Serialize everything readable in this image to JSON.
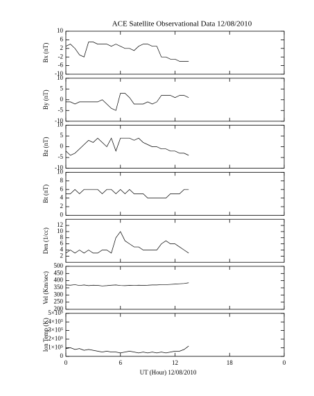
{
  "chart_data": [
    {
      "type": "line",
      "title": "ACE Satellite Observational Data   12/08/2010",
      "ylabel": "Bx (nT)",
      "x": [
        0,
        0.5,
        1,
        1.5,
        2,
        2.5,
        3,
        3.5,
        4,
        4.5,
        5,
        5.5,
        6,
        6.5,
        7,
        7.5,
        8,
        8.5,
        9,
        9.5,
        10,
        10.5,
        11,
        11.5,
        12,
        12.5,
        13,
        13.5
      ],
      "values": [
        3,
        4,
        2,
        -1,
        -2,
        5,
        5,
        4,
        4,
        4,
        3,
        4,
        3,
        2,
        2,
        1,
        3,
        4,
        4,
        3,
        3,
        -2,
        -2,
        -3,
        -3,
        -4,
        -4,
        -4
      ],
      "ylim": [
        -10,
        10
      ],
      "yticks": [
        -10,
        -6,
        -2,
        2,
        6,
        10
      ],
      "color": "#000000"
    },
    {
      "type": "line",
      "ylabel": "By (nT)",
      "x": [
        0,
        0.5,
        1,
        1.5,
        2,
        2.5,
        3,
        3.5,
        4,
        4.5,
        5,
        5.5,
        6,
        6.5,
        7,
        7.5,
        8,
        8.5,
        9,
        9.5,
        10,
        10.5,
        11,
        11.5,
        12,
        12.5,
        13,
        13.5
      ],
      "values": [
        -1,
        -1,
        -2,
        -1,
        -1,
        -1,
        -1,
        -1,
        0,
        -2,
        -4,
        -5,
        3,
        3,
        1,
        -2,
        -2,
        -2,
        -1,
        -2,
        -1,
        2,
        2,
        2,
        1,
        2,
        2,
        1
      ],
      "ylim": [
        -10,
        10
      ],
      "yticks": [
        -10,
        -5,
        0,
        5,
        10
      ],
      "color": "#000000"
    },
    {
      "type": "line",
      "ylabel": "Bz (nT)",
      "x": [
        0,
        0.5,
        1,
        1.5,
        2,
        2.5,
        3,
        3.5,
        4,
        4.5,
        5,
        5.5,
        6,
        6.5,
        7,
        7.5,
        8,
        8.5,
        9,
        9.5,
        10,
        10.5,
        11,
        11.5,
        12,
        12.5,
        13,
        13.5
      ],
      "values": [
        -2,
        -4,
        -3,
        -1,
        1,
        3,
        2,
        4,
        2,
        0,
        4,
        -2,
        4,
        4,
        4,
        3,
        4,
        2,
        1,
        0,
        0,
        -1,
        -1,
        -2,
        -2,
        -3,
        -3,
        -4
      ],
      "ylim": [
        -10,
        10
      ],
      "yticks": [
        -10,
        -5,
        0,
        5,
        10
      ],
      "color": "#000000"
    },
    {
      "type": "line",
      "ylabel": "Bt (nT)",
      "x": [
        0,
        0.5,
        1,
        1.5,
        2,
        2.5,
        3,
        3.5,
        4,
        4.5,
        5,
        5.5,
        6,
        6.5,
        7,
        7.5,
        8,
        8.5,
        9,
        9.5,
        10,
        10.5,
        11,
        11.5,
        12,
        12.5,
        13,
        13.5
      ],
      "values": [
        5,
        5,
        6,
        5,
        6,
        6,
        6,
        6,
        5,
        6,
        6,
        5,
        6,
        5,
        6,
        5,
        5,
        5,
        4,
        4,
        4,
        4,
        4,
        5,
        5,
        5,
        6,
        6
      ],
      "ylim": [
        0,
        10
      ],
      "yticks": [
        0,
        2,
        4,
        6,
        8,
        10
      ],
      "color": "#000000"
    },
    {
      "type": "line",
      "ylabel": "Den (1/cc)",
      "x": [
        0,
        0.5,
        1,
        1.5,
        2,
        2.5,
        3,
        3.5,
        4,
        4.5,
        5,
        5.5,
        6,
        6.5,
        7,
        7.5,
        8,
        8.5,
        9,
        9.5,
        10,
        10.5,
        11,
        11.5,
        12,
        12.5,
        13,
        13.5
      ],
      "values": [
        3,
        4,
        3,
        4,
        3,
        4,
        3,
        3,
        4,
        4,
        3,
        8,
        10,
        7,
        6,
        5,
        5,
        4,
        4,
        4,
        4,
        6,
        7,
        6,
        6,
        5,
        4,
        3
      ],
      "ylim": [
        0,
        14
      ],
      "yticks": [
        2,
        4,
        6,
        8,
        10,
        12
      ],
      "color": "#000000"
    },
    {
      "type": "line",
      "ylabel": "Vel (Km/sec)",
      "x": [
        0,
        0.5,
        1,
        1.5,
        2,
        2.5,
        3,
        3.5,
        4,
        4.5,
        5,
        5.5,
        6,
        6.5,
        7,
        7.5,
        8,
        8.5,
        9,
        9.5,
        10,
        10.5,
        11,
        11.5,
        12,
        12.5,
        13,
        13.5
      ],
      "values": [
        370,
        368,
        372,
        366,
        370,
        365,
        368,
        367,
        363,
        365,
        368,
        370,
        366,
        365,
        367,
        366,
        368,
        367,
        368,
        370,
        370,
        372,
        372,
        374,
        376,
        378,
        380,
        385
      ],
      "ylim": [
        200,
        500
      ],
      "yticks": [
        200,
        250,
        300,
        350,
        400,
        450,
        500
      ],
      "color": "#000000"
    },
    {
      "type": "line",
      "ylabel": "Ion Temp (K)",
      "xlabel": "UT (Hour)   12/08/2010",
      "x": [
        0,
        0.5,
        1,
        1.5,
        2,
        2.5,
        3,
        3.5,
        4,
        4.5,
        5,
        5.5,
        6,
        6.5,
        7,
        7.5,
        8,
        8.5,
        9,
        9.5,
        10,
        10.5,
        11,
        11.5,
        12,
        12.5,
        13,
        13.5
      ],
      "values": [
        90000,
        100000,
        80000,
        90000,
        70000,
        80000,
        70000,
        60000,
        50000,
        60000,
        50000,
        50000,
        40000,
        50000,
        60000,
        50000,
        40000,
        50000,
        40000,
        50000,
        40000,
        50000,
        40000,
        50000,
        60000,
        60000,
        80000,
        120000
      ],
      "ylim": [
        0,
        500000
      ],
      "yticks": [
        0,
        {
          "value": 100000,
          "label": "1×10⁵"
        },
        {
          "value": 200000,
          "label": "2×10⁵"
        },
        {
          "value": 300000,
          "label": "3×10⁵"
        },
        {
          "value": 400000,
          "label": "4×10⁵"
        },
        {
          "value": 500000,
          "label": "5×10⁵"
        }
      ],
      "xlim": [
        0,
        24
      ],
      "xticks": [
        0,
        6,
        12,
        18,
        {
          "value": 24,
          "label": "0"
        }
      ],
      "color": "#000000"
    }
  ]
}
